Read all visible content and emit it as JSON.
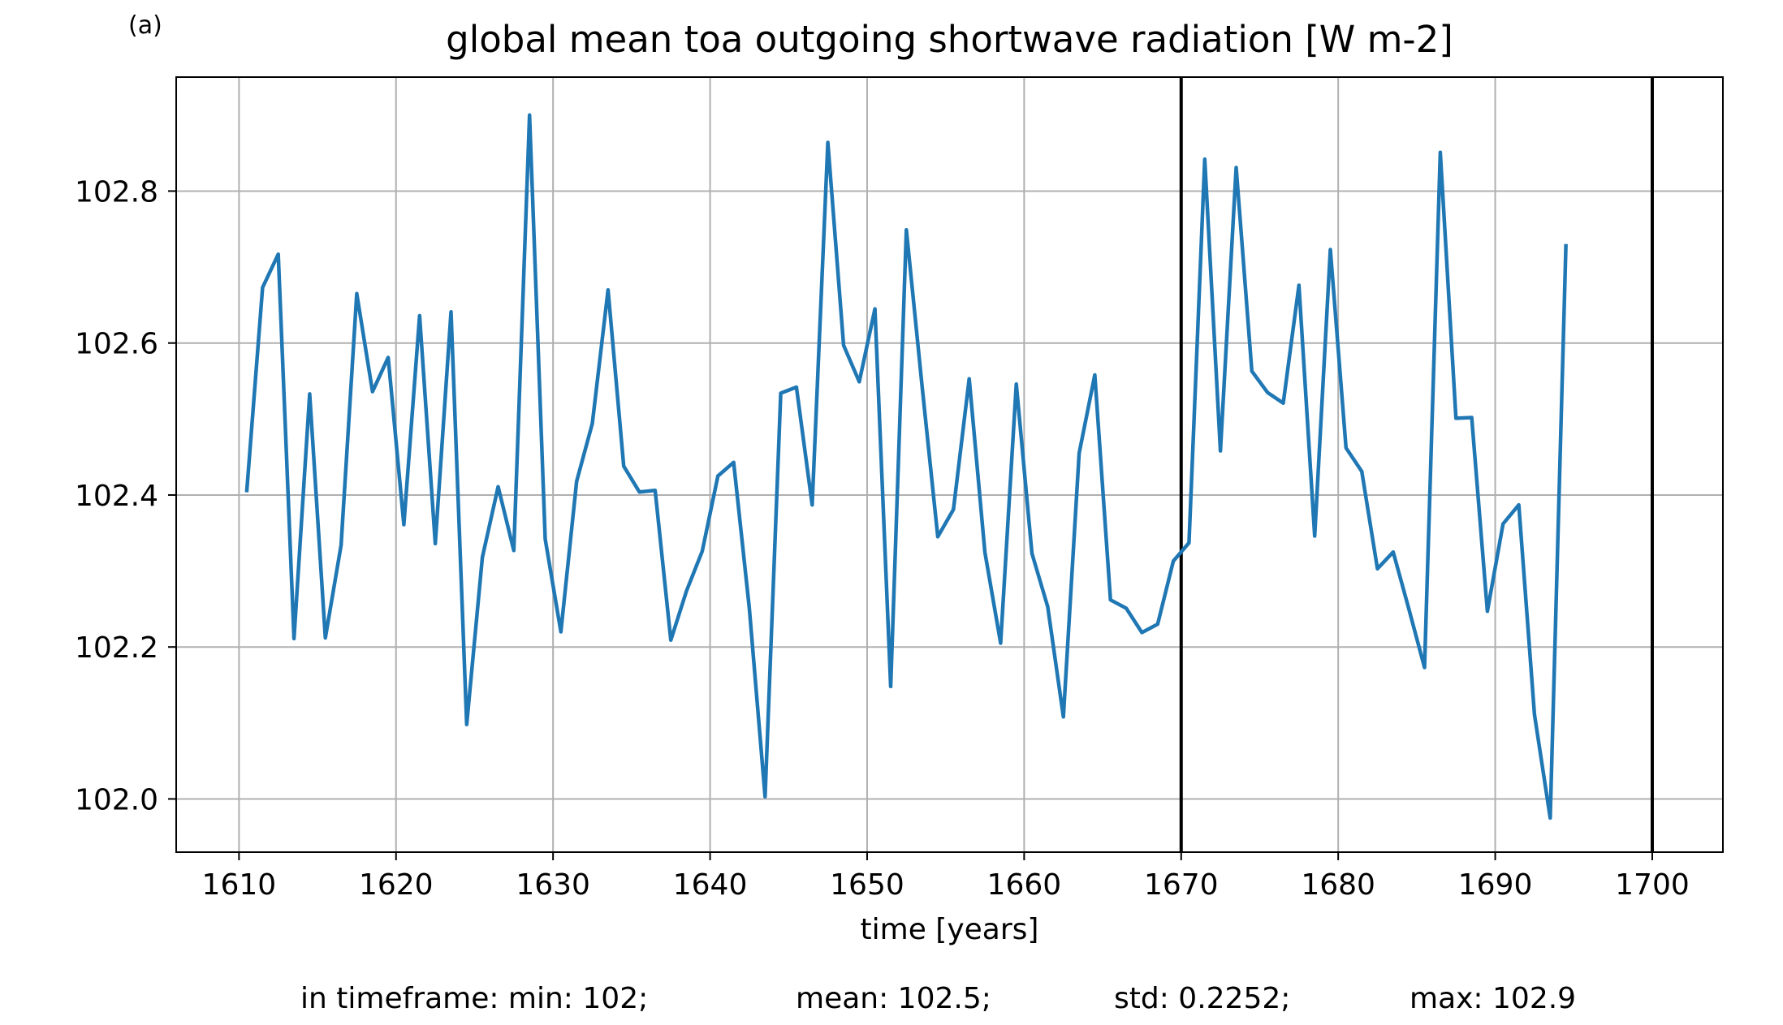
{
  "panel_label": "(a)",
  "stats": {
    "min": "in timeframe: min: 102;",
    "mean": "mean: 102.5;",
    "std": "std: 0.2252;",
    "max": "max: 102.9"
  },
  "colors": {
    "line": "#1f77b4",
    "grid": "#b0b0b0",
    "axes": "#000000",
    "markers": "#000000"
  },
  "chart_data": {
    "type": "line",
    "title": "global mean toa outgoing shortwave radiation [W m-2]",
    "xlabel": "time [years]",
    "ylabel": "",
    "xlim": [
      1606,
      1704.5
    ],
    "ylim": [
      101.93,
      102.95
    ],
    "xticks": [
      1610,
      1620,
      1630,
      1640,
      1650,
      1660,
      1670,
      1680,
      1690,
      1700
    ],
    "yticks": [
      102.0,
      102.2,
      102.4,
      102.6,
      102.8
    ],
    "grid": true,
    "vertical_lines": [
      1670,
      1700
    ],
    "series": [
      {
        "x": [
          1610.5,
          1611.5,
          1612.5,
          1613.5,
          1614.5,
          1615.5,
          1616.5,
          1617.5,
          1618.5,
          1619.5,
          1620.5,
          1621.5,
          1622.5,
          1623.5,
          1624.5,
          1625.5,
          1626.5,
          1627.5,
          1628.5,
          1629.5,
          1630.5,
          1631.5,
          1632.5,
          1633.5,
          1634.5,
          1635.5,
          1636.5,
          1637.5,
          1638.5,
          1639.5,
          1640.5,
          1641.5,
          1642.5,
          1643.5,
          1644.5,
          1645.5,
          1646.5,
          1647.5,
          1648.5,
          1649.5,
          1650.5,
          1651.5,
          1652.5,
          1653.5,
          1654.5,
          1655.5,
          1656.5,
          1657.5,
          1658.5,
          1659.5,
          1660.5,
          1661.5,
          1662.5,
          1663.5,
          1664.5,
          1665.5,
          1666.5,
          1667.5,
          1668.5,
          1669.5,
          1670.5,
          1671.5,
          1672.5,
          1673.5,
          1674.5,
          1675.5,
          1676.5,
          1677.5,
          1678.5,
          1679.5,
          1680.5,
          1681.5,
          1682.5,
          1683.5,
          1684.5,
          1685.5,
          1686.5,
          1687.5,
          1688.5,
          1689.5,
          1690.5,
          1691.5,
          1692.5,
          1693.5,
          1694.5
        ],
        "values": [
          102.406,
          102.673,
          102.717,
          102.211,
          102.533,
          102.212,
          102.334,
          102.665,
          102.536,
          102.581,
          102.361,
          102.636,
          102.336,
          102.641,
          102.098,
          102.318,
          102.411,
          102.327,
          102.9,
          102.342,
          102.22,
          102.418,
          102.494,
          102.67,
          102.438,
          102.404,
          102.406,
          102.209,
          102.274,
          102.326,
          102.425,
          102.443,
          102.251,
          102.003,
          102.534,
          102.542,
          102.387,
          102.864,
          102.597,
          102.549,
          102.645,
          102.148,
          102.749,
          102.543,
          102.345,
          102.381,
          102.553,
          102.325,
          102.205,
          102.546,
          102.323,
          102.253,
          102.108,
          102.455,
          102.558,
          102.262,
          102.251,
          102.219,
          102.23,
          102.313,
          102.337,
          102.842,
          102.458,
          102.831,
          102.563,
          102.535,
          102.521,
          102.676,
          102.346,
          102.723,
          102.462,
          102.431,
          102.303,
          102.325,
          102.25,
          102.173,
          102.851,
          102.501,
          102.502,
          102.247,
          102.362,
          102.387,
          102.111,
          101.975,
          102.728
        ]
      }
    ]
  }
}
